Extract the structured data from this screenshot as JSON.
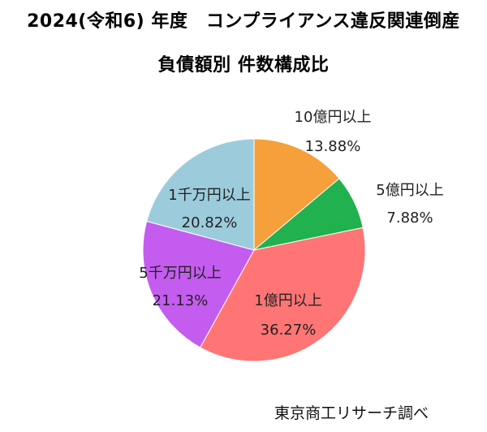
{
  "title_line1": "2024(令和6) 年度　コンプライアンス違反関連倒産",
  "title_line2": "負債額別 件数構成比",
  "source": "東京商工リサーチ調べ",
  "chart_data": {
    "type": "pie",
    "categories": [
      "10億円以上",
      "5億円以上",
      "1億円以上",
      "5千万円以上",
      "1千万円以上"
    ],
    "values": [
      13.88,
      7.88,
      36.27,
      21.13,
      20.82
    ],
    "value_labels": [
      "13.88%",
      "7.88%",
      "36.27%",
      "21.13%",
      "20.82%"
    ],
    "colors": [
      "#f5a03a",
      "#21b14e",
      "#ff7575",
      "#c45cf0",
      "#9cccdc"
    ],
    "start": "12 o'clock",
    "direction": "clockwise",
    "legend": "none"
  }
}
